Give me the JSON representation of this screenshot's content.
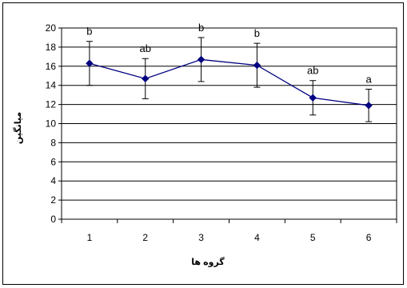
{
  "chart_data": {
    "type": "line",
    "title": "",
    "xlabel": "گروه ها",
    "ylabel": "میانگین",
    "categories": [
      "1",
      "2",
      "3",
      "4",
      "5",
      "6"
    ],
    "series": [
      {
        "name": "",
        "values": [
          16.3,
          14.7,
          16.7,
          16.1,
          12.7,
          11.9
        ],
        "error": [
          2.3,
          2.1,
          2.3,
          2.3,
          1.8,
          1.7
        ],
        "labels": [
          "b",
          "ab",
          "b",
          "b",
          "ab",
          "a"
        ],
        "color": "#000080"
      }
    ],
    "y_ticks": [
      "0",
      "2",
      "4",
      "6",
      "8",
      "10",
      "12",
      "14",
      "16",
      "18",
      "20"
    ],
    "ylim": [
      0,
      20
    ],
    "grid": true,
    "legend": "none"
  }
}
